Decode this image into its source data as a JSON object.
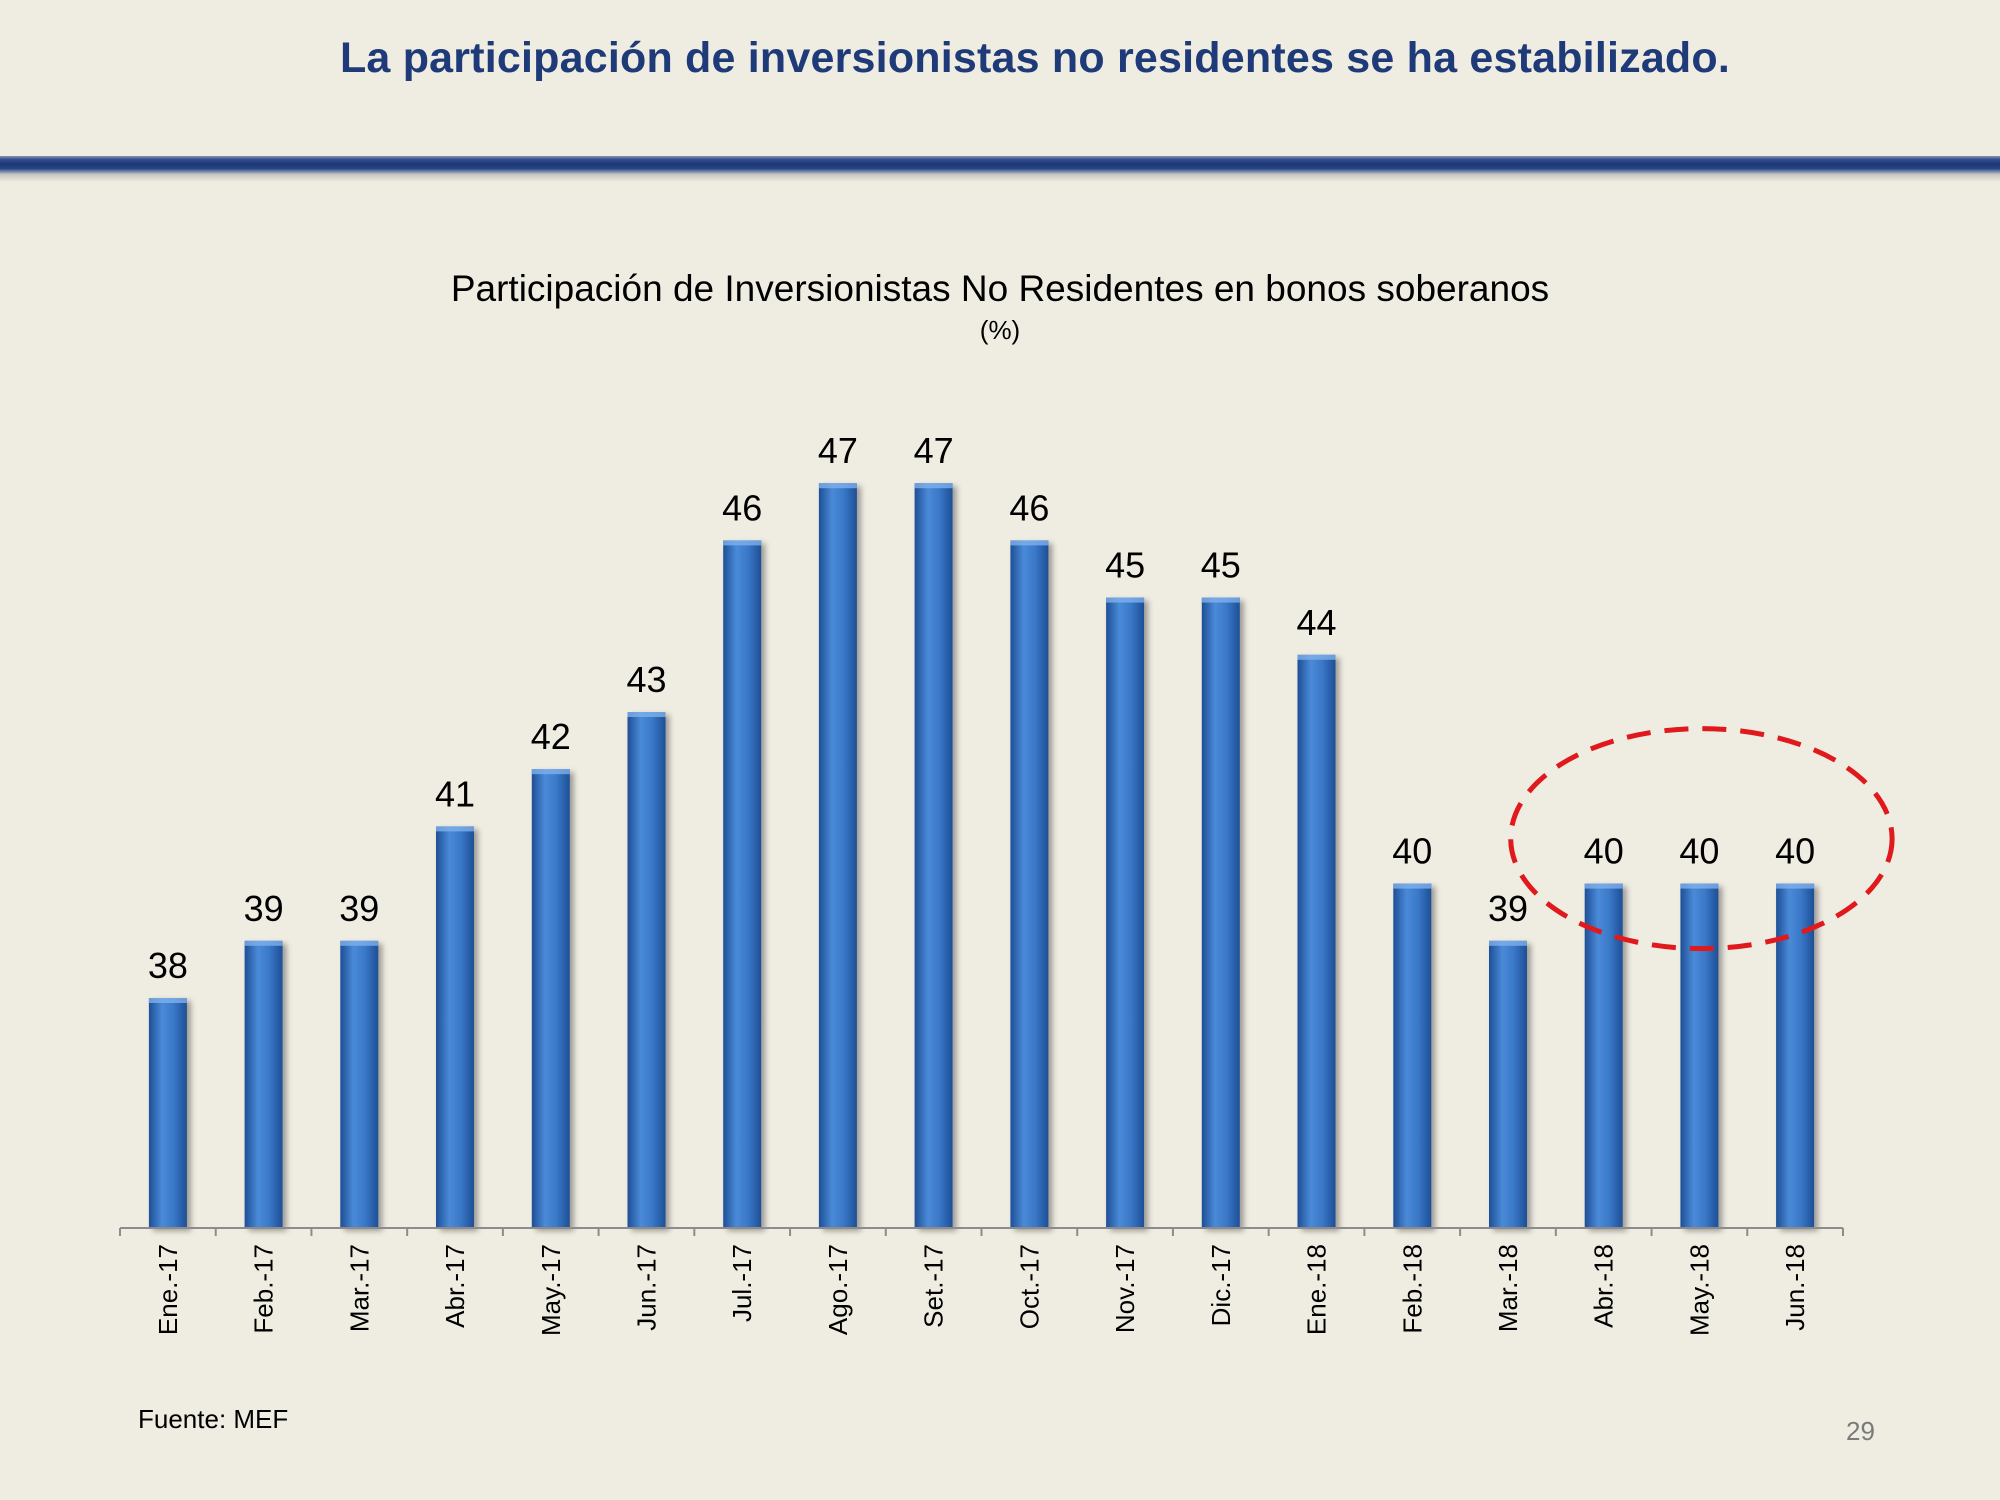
{
  "slide": {
    "title": "La participación de inversionistas no residentes se ha estabilizado.",
    "source": "Fuente: MEF",
    "page_number": "29"
  },
  "colors": {
    "bar": "#3a78c8",
    "bar_dark": "#1e4f96",
    "title": "#1f3a78",
    "highlight": "#e0191d",
    "axis": "#8c8c8c"
  },
  "chart_data": {
    "type": "bar",
    "title": "Participación de Inversionistas No Residentes en bonos soberanos",
    "subtitle": "(%)",
    "xlabel": "",
    "ylabel": "",
    "ylim": [
      0,
      48
    ],
    "grid": false,
    "categories": [
      "Ene.-17",
      "Feb.-17",
      "Mar.-17",
      "Abr.-17",
      "May.-17",
      "Jun.-17",
      "Jul.-17",
      "Ago.-17",
      "Set.-17",
      "Oct.-17",
      "Nov.-17",
      "Dic.-17",
      "Ene.-18",
      "Feb.-18",
      "Mar.-18",
      "Abr.-18",
      "May.-18",
      "Jun.-18"
    ],
    "values": [
      38,
      39,
      39,
      41,
      42,
      43,
      46,
      47,
      47,
      46,
      45,
      45,
      44,
      40,
      39,
      40,
      40,
      40
    ],
    "data_labels": [
      "38",
      "39",
      "39",
      "41",
      "42",
      "43",
      "46",
      "47",
      "47",
      "46",
      "45",
      "45",
      "44",
      "40",
      "39",
      "40",
      "40",
      "40"
    ],
    "annotation": {
      "type": "dashed-ellipse",
      "highlights": [
        "Abr.-18",
        "May.-18",
        "Jun.-18"
      ]
    }
  }
}
